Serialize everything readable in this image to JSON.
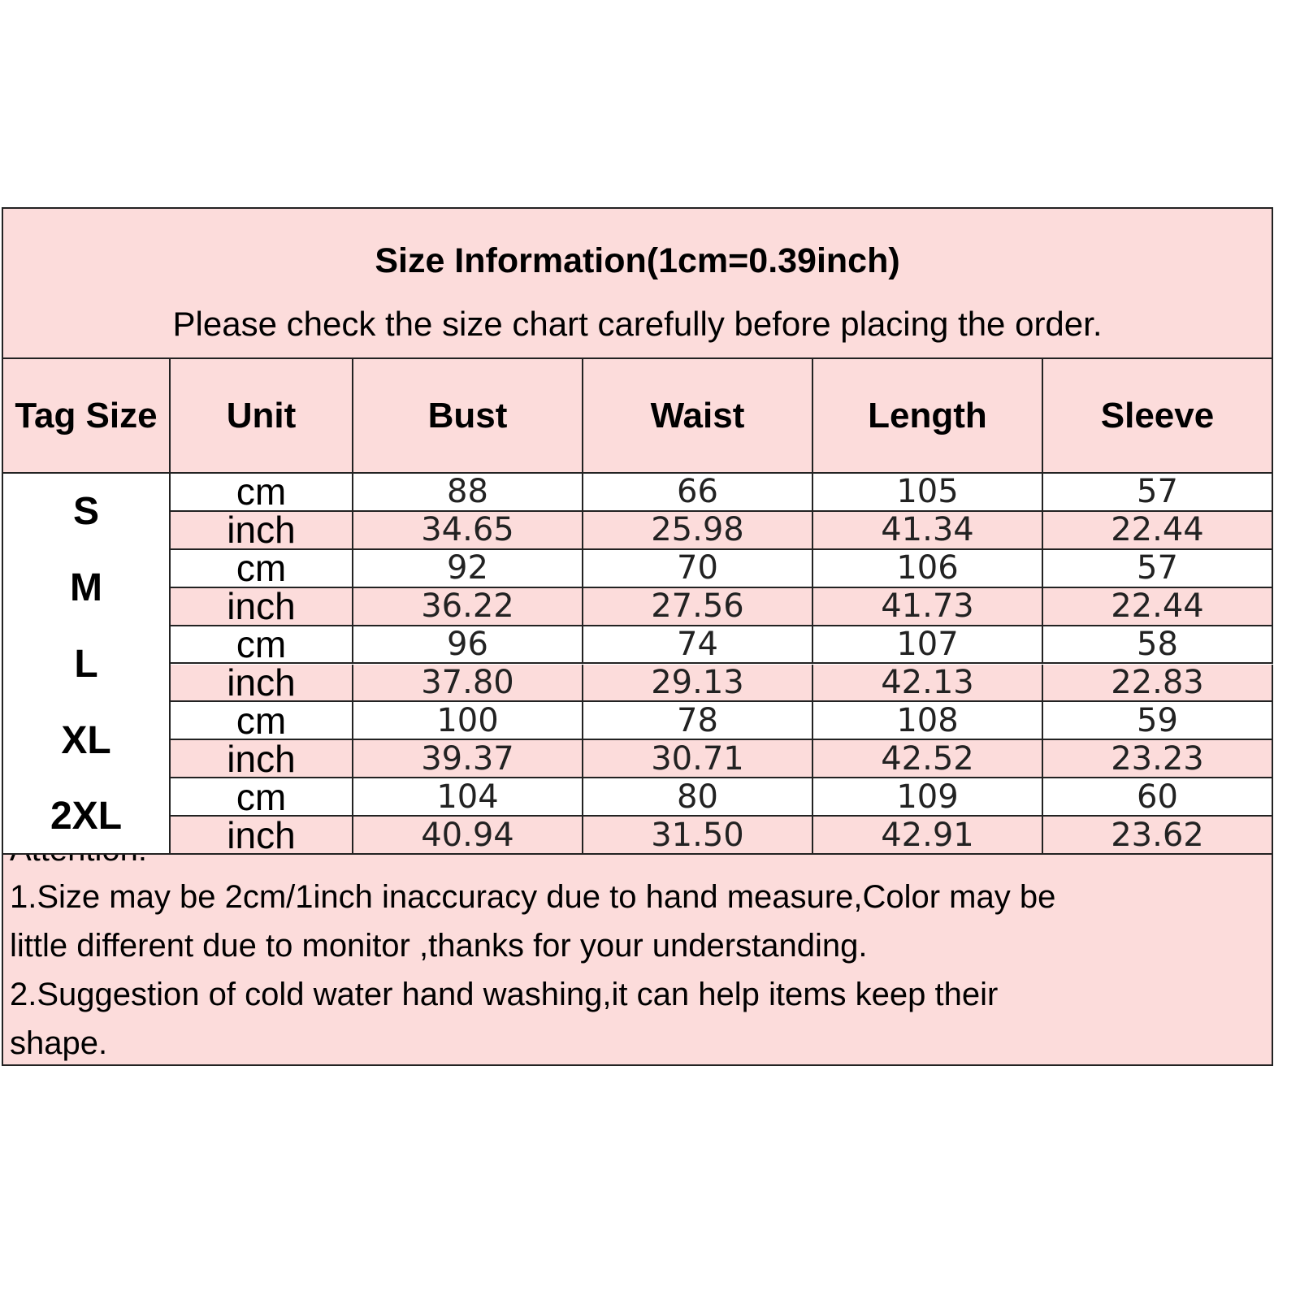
{
  "header": {
    "title": "Size Information(1cm=0.39inch)",
    "subtitle": "Please check the size chart carefully before placing the order."
  },
  "table": {
    "columns": [
      "Tag Size",
      "Unit",
      "Bust",
      "Waist",
      "Length",
      "Sleeve"
    ],
    "rows": [
      {
        "size": "S",
        "cm": [
          "88",
          "66",
          "105",
          "57"
        ],
        "inch": [
          "34.65",
          "25.98",
          "41.34",
          "22.44"
        ]
      },
      {
        "size": "M",
        "cm": [
          "92",
          "70",
          "106",
          "57"
        ],
        "inch": [
          "36.22",
          "27.56",
          "41.73",
          "22.44"
        ]
      },
      {
        "size": "L",
        "cm": [
          "96",
          "74",
          "107",
          "58"
        ],
        "inch": [
          "37.80",
          "29.13",
          "42.13",
          "22.83"
        ]
      },
      {
        "size": "XL",
        "cm": [
          "100",
          "78",
          "108",
          "59"
        ],
        "inch": [
          "39.37",
          "30.71",
          "42.52",
          "23.23"
        ]
      },
      {
        "size": "2XL",
        "cm": [
          "104",
          "80",
          "109",
          "60"
        ],
        "inch": [
          "40.94",
          "31.50",
          "42.91",
          "23.62"
        ]
      }
    ],
    "unit_cm": "cm",
    "unit_inch": "inch"
  },
  "notes": {
    "heading": "Attention:",
    "lines": [
      "1.Size may be 2cm/1inch inaccuracy due to hand measure,Color may be",
      "little different due to monitor ,thanks for your understanding.",
      "2.Suggestion of cold water hand washing,it can help items keep their",
      "shape."
    ]
  },
  "colors": {
    "header_bg": "#fcdcdb",
    "border": "#222222"
  }
}
